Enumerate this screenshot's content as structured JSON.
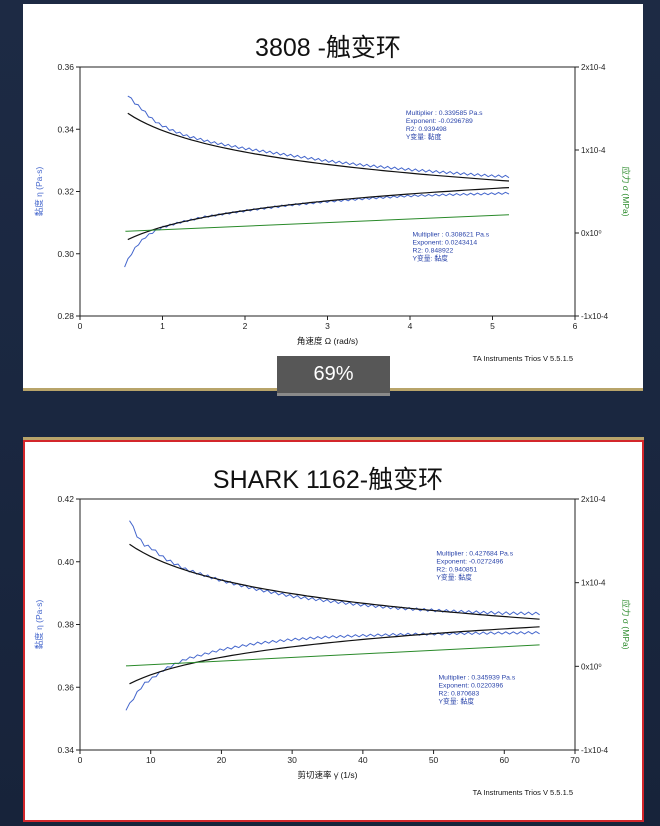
{
  "zoom": {
    "label": "69%"
  },
  "colors": {
    "blue": "#4466cc",
    "black": "#111111",
    "green": "#2a8a2a",
    "frame": "#d3262b",
    "gold": "#b8a46a"
  },
  "chart_data": [
    {
      "type": "line",
      "title": "3808 -触变环",
      "xlabel": "角速度  Ω    (rad/s)",
      "ylabel": "黏度  η    (Pa·s)",
      "y2label": "应力  σ    (MPa)",
      "footer": "TA Instruments Trios V 5.5.1.5",
      "xlim": [
        0,
        6
      ],
      "ylim": [
        0.28,
        0.36
      ],
      "xticks": [
        0,
        1,
        2,
        3,
        4,
        5,
        6
      ],
      "yticks": [
        0.28,
        0.3,
        0.32,
        0.34,
        0.36
      ],
      "ytick_labels": [
        "0.28",
        "0.30",
        "0.32",
        "0.34",
        "0.36"
      ],
      "y2ticks": [
        {
          "value": 0.28,
          "label": "-1x10-4"
        },
        {
          "value": 0.30667,
          "label": "0x10⁰"
        },
        {
          "value": 0.33333,
          "label": "1x10-4"
        },
        {
          "value": 0.36,
          "label": "2x10-4"
        }
      ],
      "fit_labels": [
        {
          "lines": [
            "Multiplier : 0.339585 Pa.s",
            "Exponent: -0.0296789",
            "R2: 0.939498",
            "Y变量: 黏度"
          ],
          "x": 3.95,
          "y": 0.3445
        },
        {
          "lines": [
            "Multiplier : 0.308621 Pa.s",
            "Exponent: 0.0243414",
            "R2: 0.848922",
            "Y变量: 黏度"
          ],
          "x": 4.03,
          "y": 0.3055
        }
      ],
      "series": [
        {
          "color": "blue",
          "x": [
            0.58,
            0.65,
            0.75,
            0.85,
            0.95,
            1.1,
            1.3,
            1.6,
            2.0,
            2.5,
            3.0,
            3.5,
            4.0,
            4.5,
            5.0,
            5.2
          ],
          "y": [
            0.351,
            0.3488,
            0.3465,
            0.3438,
            0.3418,
            0.3398,
            0.3378,
            0.3358,
            0.3338,
            0.3318,
            0.3298,
            0.3283,
            0.327,
            0.326,
            0.325,
            0.3248
          ],
          "wiggle": 0.0006
        },
        {
          "color": "blue",
          "x": [
            0.54,
            0.6,
            0.66,
            0.72,
            0.8,
            0.9,
            1.0,
            1.2,
            1.5,
            2.0,
            2.5,
            3.0,
            3.5,
            4.0,
            4.5,
            5.0,
            5.2
          ],
          "y": [
            0.296,
            0.299,
            0.3015,
            0.3035,
            0.3055,
            0.3072,
            0.3085,
            0.31,
            0.3118,
            0.3138,
            0.3155,
            0.3168,
            0.3178,
            0.3186,
            0.319,
            0.3193,
            0.3195
          ],
          "wiggle": 0.0005
        },
        {
          "color": "black",
          "fit": {
            "a": 0.339585,
            "b": -0.0296789
          },
          "x0": 0.58,
          "x1": 5.2
        },
        {
          "color": "black",
          "fit": {
            "a": 0.308621,
            "b": 0.0243414
          },
          "x0": 0.58,
          "x1": 5.2
        },
        {
          "color": "green",
          "x": [
            0.55,
            5.2
          ],
          "y": [
            0.3072,
            0.3125
          ]
        }
      ]
    },
    {
      "type": "line",
      "title": "SHARK 1162-触变环",
      "xlabel": "剪切速率  γ̇   (1/s)",
      "ylabel": "黏度  η    (Pa·s)",
      "y2label": "应力  σ    (MPa)",
      "footer": "TA Instruments Trios V 5.5.1.5",
      "xlim": [
        0,
        70
      ],
      "ylim": [
        0.34,
        0.42
      ],
      "xticks": [
        0,
        10,
        20,
        30,
        40,
        50,
        60,
        70
      ],
      "yticks": [
        0.34,
        0.36,
        0.38,
        0.4,
        0.42
      ],
      "ytick_labels": [
        "0.34",
        "0.36",
        "0.38",
        "0.40",
        "0.42"
      ],
      "y2ticks": [
        {
          "value": 0.34,
          "label": "-1x10-4"
        },
        {
          "value": 0.36667,
          "label": "0x10⁰"
        },
        {
          "value": 0.39333,
          "label": "1x10-4"
        },
        {
          "value": 0.42,
          "label": "2x10-4"
        }
      ],
      "fit_labels": [
        {
          "lines": [
            "Multiplier : 0.427684 Pa.s",
            "Exponent: -0.0272496",
            "R2: 0.940851",
            "Y变量: 黏度"
          ],
          "x": 50.4,
          "y": 0.402
        },
        {
          "lines": [
            "Multiplier : 0.345939 Pa.s",
            "Exponent: 0.0220396",
            "R2: 0.870683",
            "Y变量: 黏度"
          ],
          "x": 50.7,
          "y": 0.3625
        }
      ],
      "series": [
        {
          "color": "blue",
          "x": [
            7,
            7.5,
            8,
            9,
            10,
            12,
            15,
            20,
            25,
            30,
            35,
            40,
            45,
            50,
            55,
            60,
            65
          ],
          "y": [
            0.4135,
            0.411,
            0.4085,
            0.4055,
            0.4045,
            0.401,
            0.3975,
            0.394,
            0.3912,
            0.389,
            0.3875,
            0.3862,
            0.3852,
            0.3845,
            0.384,
            0.3836,
            0.3835
          ],
          "wiggle": 0.0007
        },
        {
          "color": "blue",
          "x": [
            6.5,
            7,
            8,
            9,
            10,
            12,
            15,
            20,
            25,
            30,
            35,
            40,
            45,
            50,
            55,
            60,
            65
          ],
          "y": [
            0.353,
            0.3545,
            0.358,
            0.361,
            0.3625,
            0.3658,
            0.369,
            0.372,
            0.374,
            0.3752,
            0.376,
            0.3765,
            0.3768,
            0.377,
            0.3772,
            0.3773,
            0.3774
          ],
          "wiggle": 0.0006
        },
        {
          "color": "black",
          "fit": {
            "a": 0.427684,
            "b": -0.0272496
          },
          "x0": 7,
          "x1": 65
        },
        {
          "color": "black",
          "fit": {
            "a": 0.345939,
            "b": 0.0220396
          },
          "x0": 7,
          "x1": 65
        },
        {
          "color": "green",
          "x": [
            6.5,
            65
          ],
          "y": [
            0.3668,
            0.3735
          ]
        }
      ]
    }
  ]
}
